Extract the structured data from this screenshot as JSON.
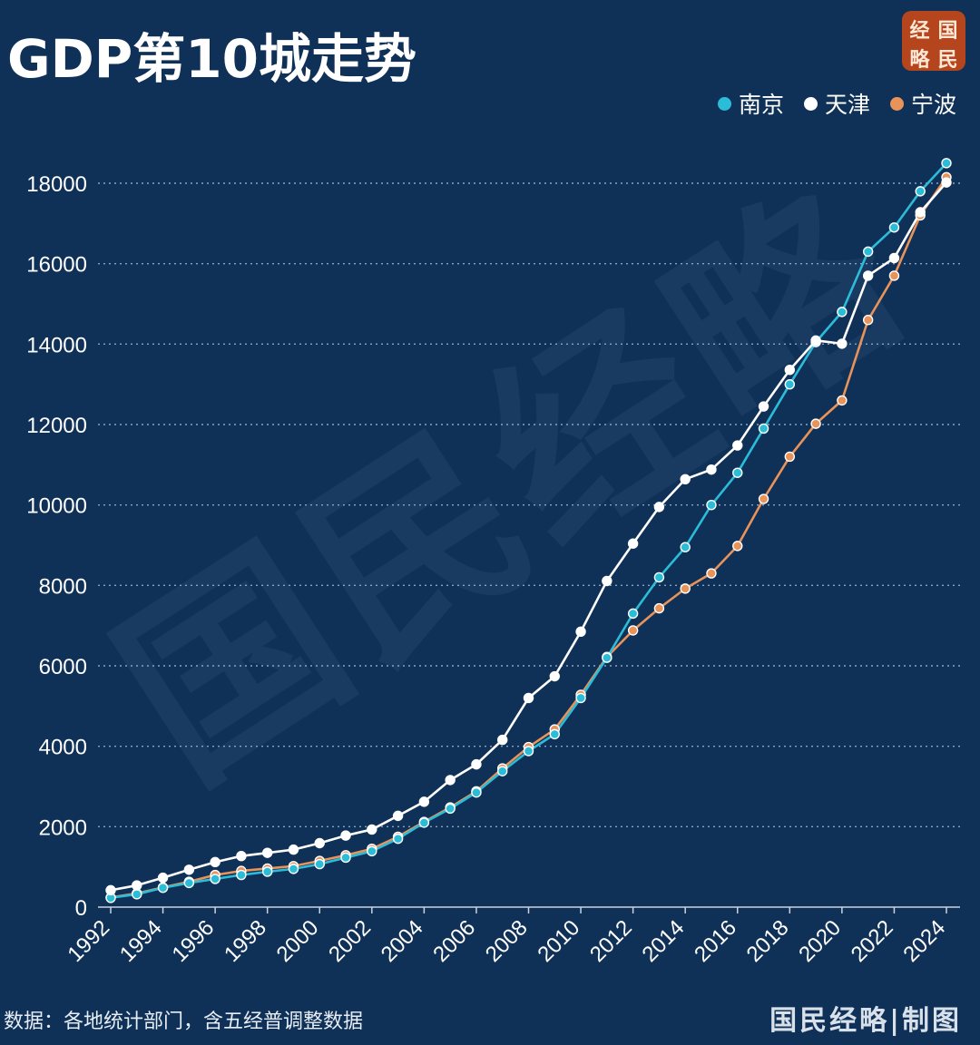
{
  "title": "GDP第10城走势",
  "logo": {
    "chars": [
      "经",
      "国",
      "略",
      "民"
    ]
  },
  "watermark": "国民经略",
  "footer": {
    "source": "数据：各地统计部门，含五经普调整数据",
    "brand": "国民经略|制图"
  },
  "colors": {
    "background": "#0f3057",
    "nanjing": "#2bbcd8",
    "tianjin": "#ffffff",
    "ningbo": "#e8935a",
    "grid": "#8aa3c0"
  },
  "chart_data": {
    "type": "line",
    "title": "GDP第10城走势",
    "xlabel": "",
    "ylabel": "",
    "ylim": [
      0,
      18000
    ],
    "yticks": [
      0,
      2000,
      4000,
      6000,
      8000,
      10000,
      12000,
      14000,
      16000,
      18000
    ],
    "xtick_labels": [
      "1992",
      "1994",
      "1996",
      "1998",
      "2000",
      "2002",
      "2004",
      "2006",
      "2008",
      "2010",
      "2012",
      "2014",
      "2016",
      "2018",
      "2020",
      "2022",
      "2024"
    ],
    "x": [
      1992,
      1993,
      1994,
      1995,
      1996,
      1997,
      1998,
      1999,
      2000,
      2001,
      2002,
      2003,
      2004,
      2005,
      2006,
      2007,
      2008,
      2009,
      2010,
      2011,
      2012,
      2013,
      2014,
      2015,
      2016,
      2017,
      2018,
      2019,
      2020,
      2021,
      2022,
      2023,
      2024
    ],
    "grid": "horizontal dotted",
    "legend": "top-right",
    "series": [
      {
        "name": "南京",
        "color": "#2bbcd8",
        "values": [
          230,
          320,
          480,
          600,
          700,
          800,
          880,
          950,
          1070,
          1230,
          1390,
          1700,
          2100,
          2450,
          2850,
          3380,
          3880,
          4300,
          5200,
          6200,
          7300,
          8200,
          8950,
          10000,
          10800,
          11900,
          13000,
          14050,
          14800,
          16300,
          16900,
          17800,
          18500
        ]
      },
      {
        "name": "天津",
        "color": "#ffffff",
        "values": [
          420,
          540,
          730,
          930,
          1120,
          1270,
          1350,
          1430,
          1590,
          1780,
          1930,
          2270,
          2620,
          3160,
          3550,
          4160,
          5200,
          5740,
          6850,
          8110,
          9040,
          9950,
          10640,
          10880,
          11480,
          12450,
          13360,
          14090,
          14010,
          15700,
          16140,
          17280,
          18020
        ]
      },
      {
        "name": "宁波",
        "color": "#e8935a",
        "values": [
          240,
          340,
          490,
          630,
          800,
          900,
          960,
          1020,
          1150,
          1290,
          1450,
          1750,
          2120,
          2480,
          2880,
          3450,
          3980,
          4420,
          5280,
          6220,
          6880,
          7430,
          7920,
          8300,
          8980,
          10150,
          11200,
          12020,
          12600,
          14600,
          15700,
          17200,
          18150
        ]
      }
    ]
  }
}
